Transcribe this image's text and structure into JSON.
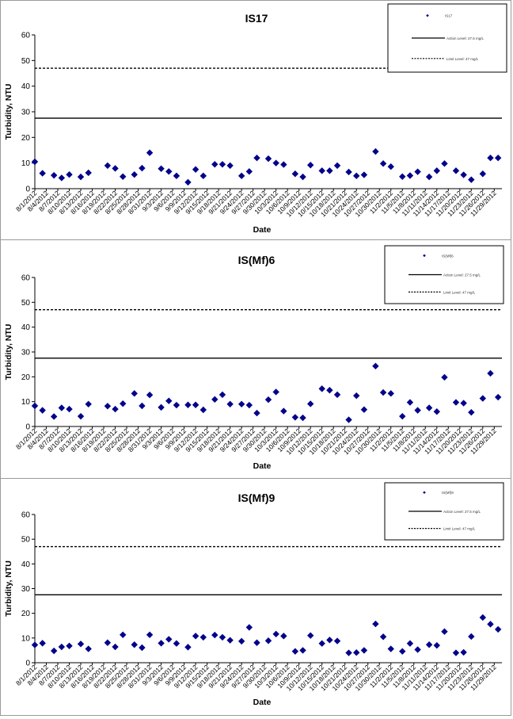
{
  "chart_data": [
    {
      "type": "scatter",
      "title": "IS17",
      "xlabel": "Date",
      "ylabel": "Turbidity, NTU",
      "ylim": [
        0,
        60
      ],
      "yticks": [
        0,
        10,
        20,
        30,
        40,
        50,
        60
      ],
      "grid": false,
      "legend_position": "top-right",
      "legend": [
        "IS17",
        "Action Level: 27.5 mg/L",
        "Limit Level: 47 mg/L"
      ],
      "x_ticks": [
        "8/1/2012",
        "8/4/2012",
        "8/7/2012",
        "8/10/2012",
        "8/13/2012",
        "8/16/2012",
        "8/19/2012",
        "8/22/2012",
        "8/25/2012",
        "8/28/2012",
        "8/31/2012",
        "9/3/2012",
        "9/6/2012",
        "9/9/2012",
        "9/12/2012",
        "9/15/2012",
        "9/18/2012",
        "9/21/2012",
        "9/24/2012",
        "9/27/2012",
        "9/30/2012",
        "10/3/2012",
        "10/6/2012",
        "10/9/2012",
        "10/12/2012",
        "10/15/2012",
        "10/18/2012",
        "10/21/2012",
        "10/24/2012",
        "10/27/2012",
        "10/30/2012",
        "11/2/2012",
        "11/5/2012",
        "11/8/2012",
        "11/11/2012",
        "11/14/2012",
        "11/17/2012",
        "11/20/2012",
        "11/23/2012",
        "11/26/2012",
        "11/29/2012"
      ],
      "series": [
        {
          "name": "IS17",
          "color": "#00008B",
          "points": [
            {
              "x": "8/1/2012",
              "y": 10.5
            },
            {
              "x": "8/3/2012",
              "y": 6
            },
            {
              "x": "8/6/2012",
              "y": 5.2
            },
            {
              "x": "8/8/2012",
              "y": 4.2
            },
            {
              "x": "8/10/2012",
              "y": 5.5
            },
            {
              "x": "8/13/2012",
              "y": 4.6
            },
            {
              "x": "8/15/2012",
              "y": 6.2
            },
            {
              "x": "8/20/2012",
              "y": 9
            },
            {
              "x": "8/22/2012",
              "y": 7.9
            },
            {
              "x": "8/24/2012",
              "y": 4.7
            },
            {
              "x": "8/27/2012",
              "y": 5.5
            },
            {
              "x": "8/29/2012",
              "y": 8
            },
            {
              "x": "8/31/2012",
              "y": 14
            },
            {
              "x": "9/3/2012",
              "y": 7.8
            },
            {
              "x": "9/5/2012",
              "y": 6.7
            },
            {
              "x": "9/7/2012",
              "y": 5
            },
            {
              "x": "9/10/2012",
              "y": 2.5
            },
            {
              "x": "9/12/2012",
              "y": 7.5
            },
            {
              "x": "9/14/2012",
              "y": 5
            },
            {
              "x": "9/17/2012",
              "y": 9.5
            },
            {
              "x": "9/19/2012",
              "y": 9.5
            },
            {
              "x": "9/21/2012",
              "y": 9
            },
            {
              "x": "9/24/2012",
              "y": 5
            },
            {
              "x": "9/26/2012",
              "y": 6.7
            },
            {
              "x": "9/28/2012",
              "y": 12
            },
            {
              "x": "10/1/2012",
              "y": 11.7
            },
            {
              "x": "10/3/2012",
              "y": 10
            },
            {
              "x": "10/5/2012",
              "y": 9.4
            },
            {
              "x": "10/8/2012",
              "y": 5.8
            },
            {
              "x": "10/10/2012",
              "y": 4.6
            },
            {
              "x": "10/12/2012",
              "y": 9.2
            },
            {
              "x": "10/15/2012",
              "y": 7
            },
            {
              "x": "10/17/2012",
              "y": 7
            },
            {
              "x": "10/19/2012",
              "y": 9
            },
            {
              "x": "10/22/2012",
              "y": 6.5
            },
            {
              "x": "10/24/2012",
              "y": 5
            },
            {
              "x": "10/26/2012",
              "y": 5.4
            },
            {
              "x": "10/29/2012",
              "y": 14.5
            },
            {
              "x": "10/31/2012",
              "y": 9.8
            },
            {
              "x": "11/2/2012",
              "y": 8.6
            },
            {
              "x": "11/5/2012",
              "y": 4.7
            },
            {
              "x": "11/7/2012",
              "y": 5.1
            },
            {
              "x": "11/9/2012",
              "y": 6.6
            },
            {
              "x": "11/12/2012",
              "y": 4.6
            },
            {
              "x": "11/14/2012",
              "y": 7
            },
            {
              "x": "11/16/2012",
              "y": 9.8
            },
            {
              "x": "11/19/2012",
              "y": 7
            },
            {
              "x": "11/21/2012",
              "y": 5.4
            },
            {
              "x": "11/23/2012",
              "y": 3.5
            },
            {
              "x": "11/26/2012",
              "y": 5.8
            },
            {
              "x": "11/28/2012",
              "y": 12
            },
            {
              "x": "11/30/2012",
              "y": 12
            }
          ]
        },
        {
          "name": "Action Level: 27.5 mg/L",
          "line_style": "solid",
          "value": 27.5
        },
        {
          "name": "Limit Level: 47 mg/L",
          "line_style": "dashed",
          "value": 47
        }
      ]
    },
    {
      "type": "scatter",
      "title": "IS(Mf)6",
      "xlabel": "Date",
      "ylabel": "Turbidity, NTU",
      "ylim": [
        0,
        60
      ],
      "yticks": [
        0,
        10,
        20,
        30,
        40,
        50,
        60
      ],
      "grid": false,
      "legend_position": "top-right",
      "legend": [
        "IS(Mf)6",
        "Action Level: 27.5 mg/L",
        "Limit Level: 47 mg/L"
      ],
      "x_ticks": [
        "8/1/2012",
        "8/4/2012",
        "8/7/2012",
        "8/10/2012",
        "8/13/2012",
        "8/16/2012",
        "8/19/2012",
        "8/22/2012",
        "8/25/2012",
        "8/28/2012",
        "8/31/2012",
        "9/3/2012",
        "9/6/2012",
        "9/9/2012",
        "9/12/2012",
        "9/15/2012",
        "9/18/2012",
        "9/21/2012",
        "9/24/2012",
        "9/27/2012",
        "9/30/2012",
        "10/3/2012",
        "10/6/2012",
        "10/9/2012",
        "10/12/2012",
        "10/15/2012",
        "10/18/2012",
        "10/21/2012",
        "10/24/2012",
        "10/27/2012",
        "10/30/2012",
        "11/2/2012",
        "11/5/2012",
        "11/8/2012",
        "11/11/2012",
        "11/14/2012",
        "11/17/2012",
        "11/20/2012",
        "11/23/2012",
        "11/26/2012",
        "11/29/2012"
      ],
      "series": [
        {
          "name": "IS(Mf)6",
          "color": "#00008B",
          "points": [
            {
              "x": "8/1/2012",
              "y": 8.3
            },
            {
              "x": "8/3/2012",
              "y": 6.5
            },
            {
              "x": "8/6/2012",
              "y": 4
            },
            {
              "x": "8/8/2012",
              "y": 7.5
            },
            {
              "x": "8/10/2012",
              "y": 7
            },
            {
              "x": "8/13/2012",
              "y": 4.1
            },
            {
              "x": "8/15/2012",
              "y": 9
            },
            {
              "x": "8/20/2012",
              "y": 8.2
            },
            {
              "x": "8/22/2012",
              "y": 7
            },
            {
              "x": "8/24/2012",
              "y": 9.2
            },
            {
              "x": "8/27/2012",
              "y": 13.3
            },
            {
              "x": "8/29/2012",
              "y": 8.3
            },
            {
              "x": "8/31/2012",
              "y": 12.7
            },
            {
              "x": "9/3/2012",
              "y": 7.7
            },
            {
              "x": "9/5/2012",
              "y": 10.3
            },
            {
              "x": "9/7/2012",
              "y": 8.6
            },
            {
              "x": "9/10/2012",
              "y": 8.7
            },
            {
              "x": "9/12/2012",
              "y": 8.7
            },
            {
              "x": "9/14/2012",
              "y": 6.7
            },
            {
              "x": "9/17/2012",
              "y": 10.9
            },
            {
              "x": "9/19/2012",
              "y": 12.8
            },
            {
              "x": "9/21/2012",
              "y": 9
            },
            {
              "x": "9/24/2012",
              "y": 9
            },
            {
              "x": "9/26/2012",
              "y": 8.6
            },
            {
              "x": "9/28/2012",
              "y": 5.4
            },
            {
              "x": "10/1/2012",
              "y": 10.8
            },
            {
              "x": "10/3/2012",
              "y": 13.9
            },
            {
              "x": "10/5/2012",
              "y": 6.2
            },
            {
              "x": "10/8/2012",
              "y": 3.7
            },
            {
              "x": "10/10/2012",
              "y": 3.5
            },
            {
              "x": "10/12/2012",
              "y": 9.1
            },
            {
              "x": "10/15/2012",
              "y": 15.2
            },
            {
              "x": "10/17/2012",
              "y": 14.6
            },
            {
              "x": "10/19/2012",
              "y": 12.8
            },
            {
              "x": "10/22/2012",
              "y": 2.7
            },
            {
              "x": "10/24/2012",
              "y": 12.4
            },
            {
              "x": "10/26/2012",
              "y": 6.8
            },
            {
              "x": "10/29/2012",
              "y": 24.3
            },
            {
              "x": "10/31/2012",
              "y": 13.7
            },
            {
              "x": "11/2/2012",
              "y": 13.3
            },
            {
              "x": "11/5/2012",
              "y": 4.1
            },
            {
              "x": "11/7/2012",
              "y": 9.7
            },
            {
              "x": "11/9/2012",
              "y": 6.5
            },
            {
              "x": "11/12/2012",
              "y": 7.5
            },
            {
              "x": "11/14/2012",
              "y": 6
            },
            {
              "x": "11/16/2012",
              "y": 19.8
            },
            {
              "x": "11/19/2012",
              "y": 9.7
            },
            {
              "x": "11/21/2012",
              "y": 9.4
            },
            {
              "x": "11/23/2012",
              "y": 5.7
            },
            {
              "x": "11/26/2012",
              "y": 11.3
            },
            {
              "x": "11/28/2012",
              "y": 21.4
            },
            {
              "x": "11/30/2012",
              "y": 11.8
            }
          ]
        },
        {
          "name": "Action Level: 27.5 mg/L",
          "line_style": "solid",
          "value": 27.5
        },
        {
          "name": "Limit Level: 47 mg/L",
          "line_style": "dashed",
          "value": 47
        }
      ]
    },
    {
      "type": "scatter",
      "title": "IS(Mf)9",
      "xlabel": "Date",
      "ylabel": "Turbidity, NTU",
      "ylim": [
        0,
        60
      ],
      "yticks": [
        0,
        10,
        20,
        30,
        40,
        50,
        60
      ],
      "grid": false,
      "legend_position": "top-right",
      "legend": [
        "IS(Mf)9",
        "Action Level: 27.5 mg/L",
        "Limit Level: 47 mg/L"
      ],
      "x_ticks": [
        "8/1/2012",
        "8/4/2012",
        "8/7/2012",
        "8/10/2012",
        "8/13/2012",
        "8/16/2012",
        "8/19/2012",
        "8/22/2012",
        "8/25/2012",
        "8/28/2012",
        "8/31/2012",
        "9/3/2012",
        "9/6/2012",
        "9/9/2012",
        "9/12/2012",
        "9/15/2012",
        "9/18/2012",
        "9/21/2012",
        "9/24/2012",
        "9/27/2012",
        "9/30/2012",
        "10/3/2012",
        "10/6/2012",
        "10/9/2012",
        "10/12/2012",
        "10/15/2012",
        "10/18/2012",
        "10/21/2012",
        "10/24/2012",
        "10/27/2012",
        "10/30/2012",
        "11/2/2012",
        "11/5/2012",
        "11/8/2012",
        "11/11/2012",
        "11/14/2012",
        "11/17/2012",
        "11/20/2012",
        "11/23/2012",
        "11/26/2012",
        "11/29/2012"
      ],
      "series": [
        {
          "name": "IS(Mf)9",
          "color": "#00008B",
          "points": [
            {
              "x": "8/1/2012",
              "y": 7.2
            },
            {
              "x": "8/3/2012",
              "y": 7.9
            },
            {
              "x": "8/6/2012",
              "y": 4.8
            },
            {
              "x": "8/8/2012",
              "y": 6.4
            },
            {
              "x": "8/10/2012",
              "y": 6.8
            },
            {
              "x": "8/13/2012",
              "y": 7.6
            },
            {
              "x": "8/15/2012",
              "y": 5.6
            },
            {
              "x": "8/20/2012",
              "y": 8.1
            },
            {
              "x": "8/22/2012",
              "y": 6.4
            },
            {
              "x": "8/24/2012",
              "y": 11.3
            },
            {
              "x": "8/27/2012",
              "y": 7.3
            },
            {
              "x": "8/29/2012",
              "y": 6.1
            },
            {
              "x": "8/31/2012",
              "y": 11.3
            },
            {
              "x": "9/3/2012",
              "y": 7.9
            },
            {
              "x": "9/5/2012",
              "y": 9.5
            },
            {
              "x": "9/7/2012",
              "y": 7.8
            },
            {
              "x": "9/10/2012",
              "y": 6.3
            },
            {
              "x": "9/12/2012",
              "y": 10.8
            },
            {
              "x": "9/14/2012",
              "y": 10.3
            },
            {
              "x": "9/17/2012",
              "y": 11.2
            },
            {
              "x": "9/19/2012",
              "y": 10.3
            },
            {
              "x": "9/21/2012",
              "y": 9.1
            },
            {
              "x": "9/24/2012",
              "y": 8.7
            },
            {
              "x": "9/26/2012",
              "y": 14.3
            },
            {
              "x": "9/28/2012",
              "y": 8.1
            },
            {
              "x": "10/1/2012",
              "y": 8.9
            },
            {
              "x": "10/3/2012",
              "y": 11.6
            },
            {
              "x": "10/5/2012",
              "y": 10.8
            },
            {
              "x": "10/8/2012",
              "y": 4.6
            },
            {
              "x": "10/10/2012",
              "y": 5
            },
            {
              "x": "10/12/2012",
              "y": 11
            },
            {
              "x": "10/15/2012",
              "y": 7.8
            },
            {
              "x": "10/17/2012",
              "y": 9.2
            },
            {
              "x": "10/19/2012",
              "y": 8.8
            },
            {
              "x": "10/22/2012",
              "y": 4
            },
            {
              "x": "10/24/2012",
              "y": 4.1
            },
            {
              "x": "10/26/2012",
              "y": 5
            },
            {
              "x": "10/29/2012",
              "y": 15.7
            },
            {
              "x": "10/31/2012",
              "y": 10.5
            },
            {
              "x": "11/2/2012",
              "y": 5.6
            },
            {
              "x": "11/5/2012",
              "y": 4.6
            },
            {
              "x": "11/7/2012",
              "y": 7.8
            },
            {
              "x": "11/9/2012",
              "y": 5.3
            },
            {
              "x": "11/12/2012",
              "y": 7.3
            },
            {
              "x": "11/14/2012",
              "y": 7
            },
            {
              "x": "11/16/2012",
              "y": 12.6
            },
            {
              "x": "11/19/2012",
              "y": 4
            },
            {
              "x": "11/21/2012",
              "y": 4.2
            },
            {
              "x": "11/23/2012",
              "y": 10.6
            },
            {
              "x": "11/26/2012",
              "y": 18.3
            },
            {
              "x": "11/28/2012",
              "y": 15.6
            },
            {
              "x": "11/30/2012",
              "y": 13.5
            }
          ]
        },
        {
          "name": "Action Level: 27.5 mg/L",
          "line_style": "solid",
          "value": 27.5
        },
        {
          "name": "Limit Level: 47 mg/L",
          "line_style": "dashed",
          "value": 47
        }
      ]
    }
  ]
}
